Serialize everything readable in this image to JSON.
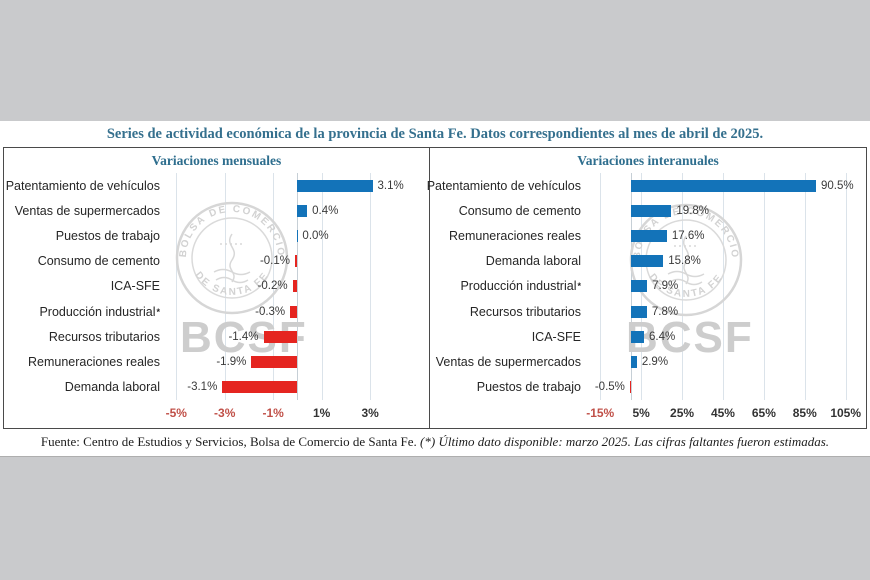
{
  "page": {
    "title": "Series de actividad económica de la provincia de Santa Fe. Datos correspondientes al mes de abril de 2025.",
    "footer_source": "Fuente: Centro de Estudios y Servicios, Bolsa de Comercio de Santa Fe.",
    "footer_note": "(*) Último dato disponible: marzo 2025. Las cifras faltantes fueron estimadas."
  },
  "watermark": {
    "seal_top": "BOLSA DE COMERCIO",
    "seal_bottom": "DE SANTA FE",
    "bcsf": "BCSF"
  },
  "colors": {
    "positive_bar": "#1373b9",
    "negative_bar": "#e52520",
    "title_teal": "#35708e",
    "negative_tick": "#c05048",
    "gridline": "#dbe3ea",
    "background_gray": "#c9cacc"
  },
  "chart_data": [
    {
      "type": "bar",
      "orientation": "horizontal",
      "title": "Variaciones mensuales",
      "axis": {
        "min": -5.3,
        "max": 5.1,
        "ticks": [
          -5,
          -3,
          -1,
          1,
          3
        ],
        "tick_labels": [
          "-5%",
          "-3%",
          "-1%",
          "1%",
          "3%"
        ]
      },
      "bars": [
        {
          "category": "Patentamiento de vehículos",
          "value": 3.1,
          "label": "3.1%"
        },
        {
          "category": "Ventas de supermercados",
          "value": 0.4,
          "label": "0.4%"
        },
        {
          "category": "Puestos de trabajo",
          "value": 0.0,
          "label": "0.0%"
        },
        {
          "category": "Consumo de cemento",
          "value": -0.1,
          "label": "-0.1%"
        },
        {
          "category": "ICA-SFE",
          "value": -0.2,
          "label": "-0.2%"
        },
        {
          "category": "Producción industrial *",
          "value": -0.3,
          "label": "-0.3%"
        },
        {
          "category": "Recursos tributarios",
          "value": -1.4,
          "label": "-1.4%"
        },
        {
          "category": "Remuneraciones reales",
          "value": -1.9,
          "label": "-1.9%"
        },
        {
          "category": "Demanda laboral",
          "value": -3.1,
          "label": "-3.1%"
        }
      ]
    },
    {
      "type": "bar",
      "orientation": "horizontal",
      "title": "Variaciones interanuales",
      "axis": {
        "min": -20,
        "max": 112,
        "ticks": [
          -15,
          5,
          25,
          45,
          65,
          85,
          105
        ],
        "tick_labels": [
          "-15%",
          "5%",
          "25%",
          "45%",
          "65%",
          "85%",
          "105%"
        ]
      },
      "bars": [
        {
          "category": "Patentamiento de vehículos",
          "value": 90.5,
          "label": "90.5%"
        },
        {
          "category": "Consumo de cemento",
          "value": 19.8,
          "label": "19.8%"
        },
        {
          "category": "Remuneraciones reales",
          "value": 17.6,
          "label": "17.6%"
        },
        {
          "category": "Demanda laboral",
          "value": 15.8,
          "label": "15.8%"
        },
        {
          "category": "Producción industrial *",
          "value": 7.9,
          "label": "7.9%"
        },
        {
          "category": "Recursos tributarios",
          "value": 7.8,
          "label": "7.8%"
        },
        {
          "category": "ICA-SFE",
          "value": 6.4,
          "label": "6.4%"
        },
        {
          "category": "Ventas de supermercados",
          "value": 2.9,
          "label": "2.9%"
        },
        {
          "category": "Puestos de trabajo",
          "value": -0.5,
          "label": "-0.5%"
        }
      ]
    }
  ]
}
